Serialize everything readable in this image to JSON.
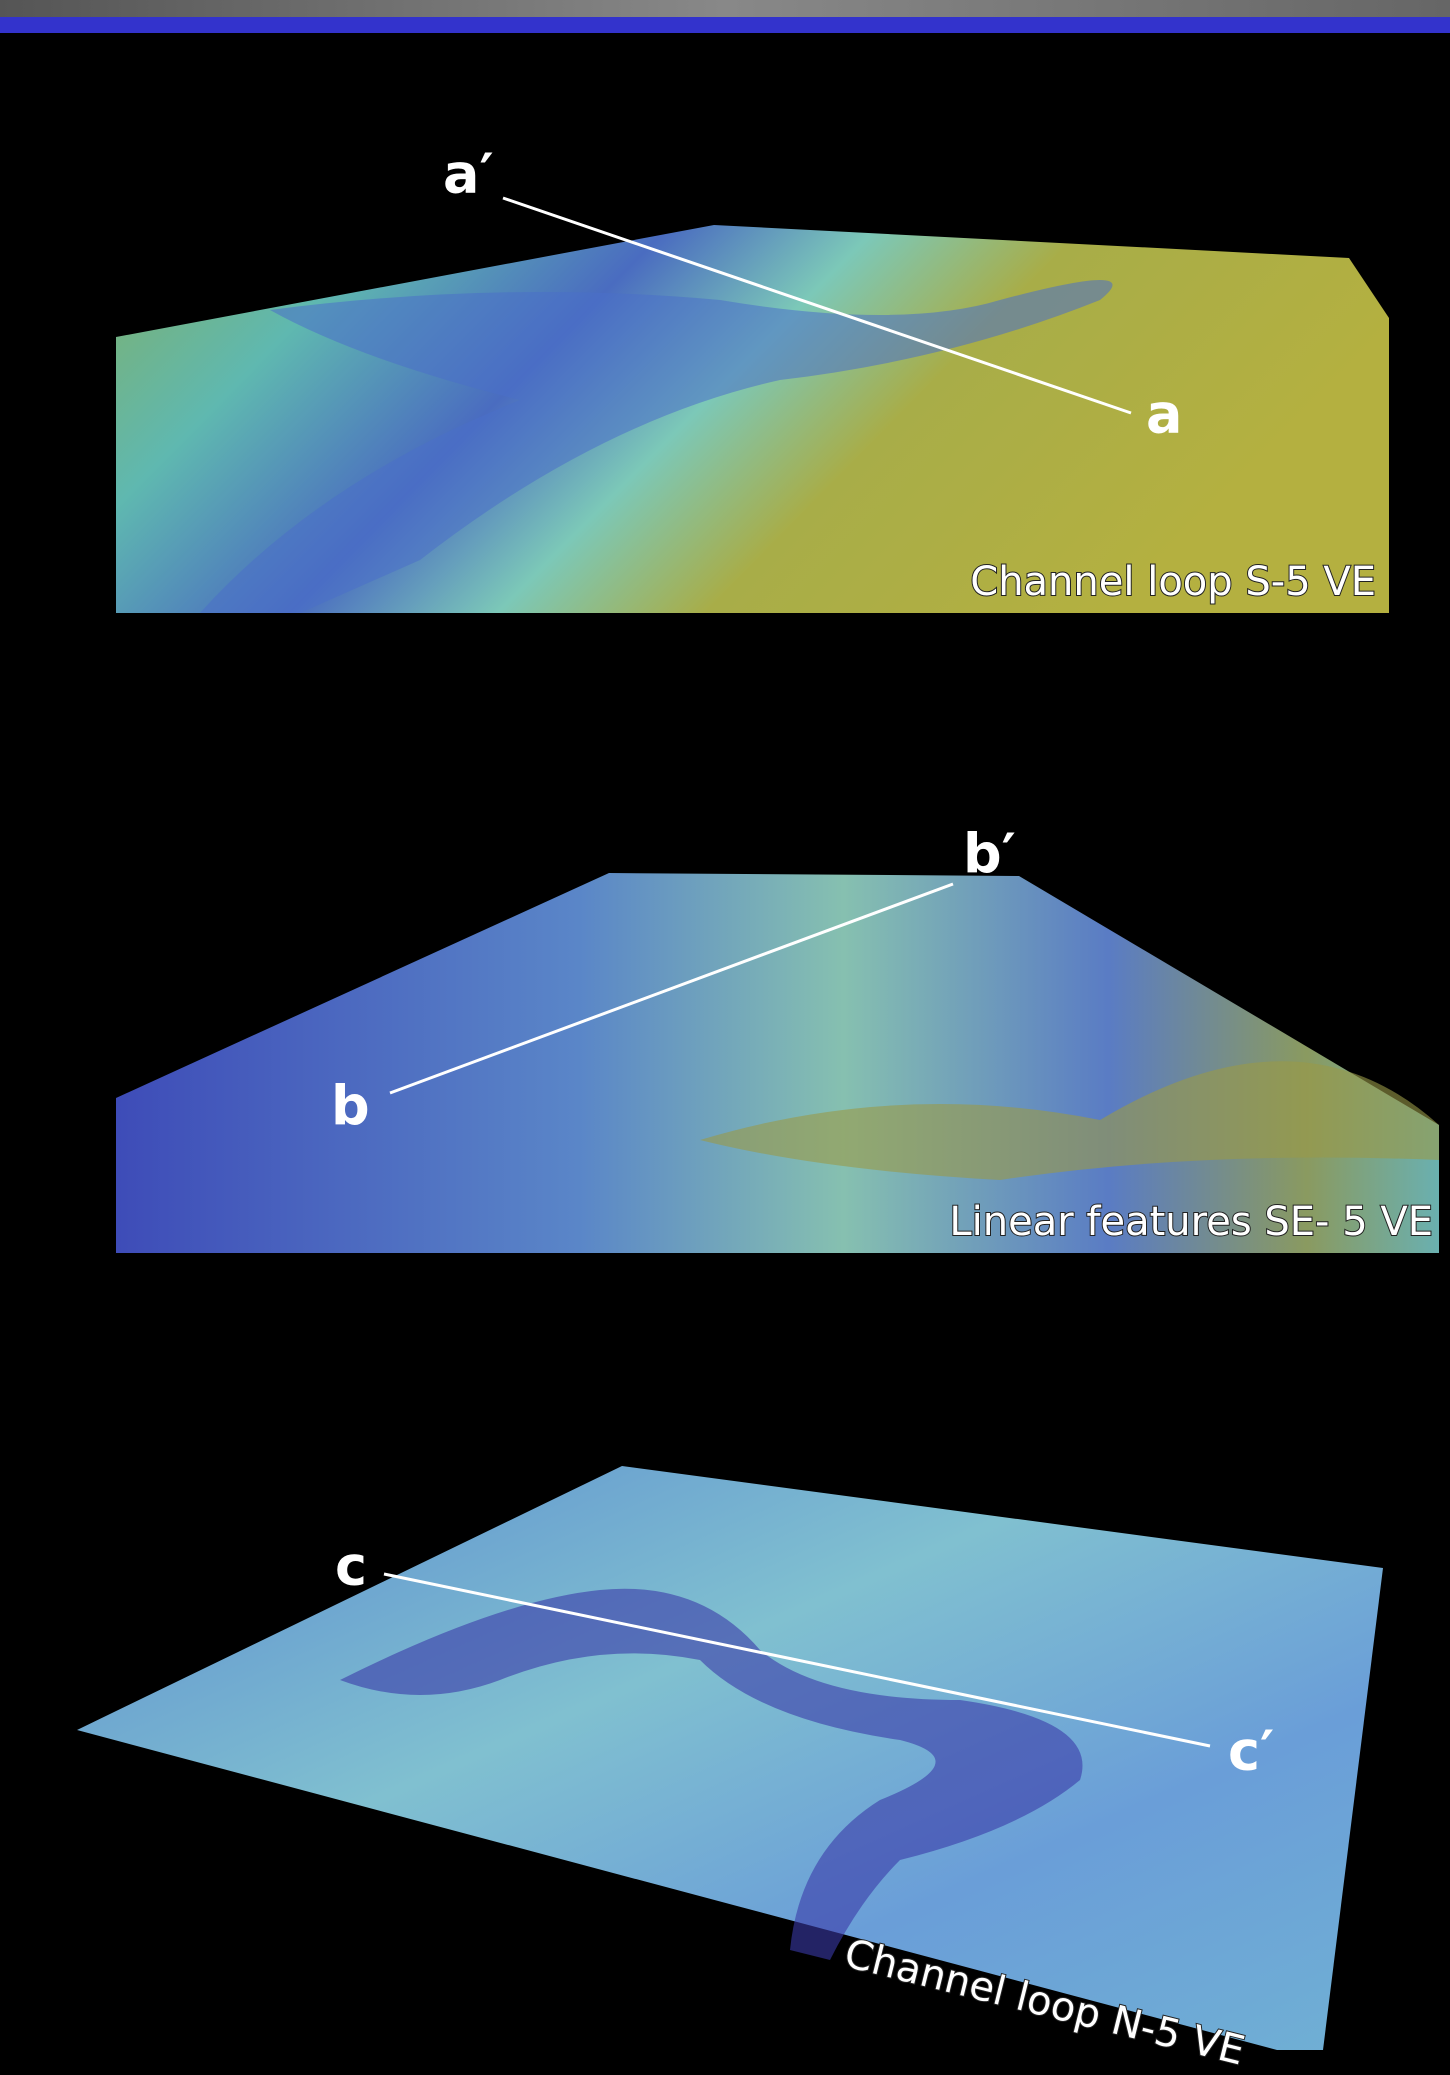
{
  "panels": [
    {
      "start_label": "a′",
      "end_label": "a",
      "caption": "Channel loop S-5 VE"
    },
    {
      "start_label": "b′",
      "end_label": "b",
      "caption": "Linear features SE- 5 VE"
    },
    {
      "start_label": "c",
      "end_label": "c′",
      "caption": "Channel loop N-5 VE"
    }
  ]
}
